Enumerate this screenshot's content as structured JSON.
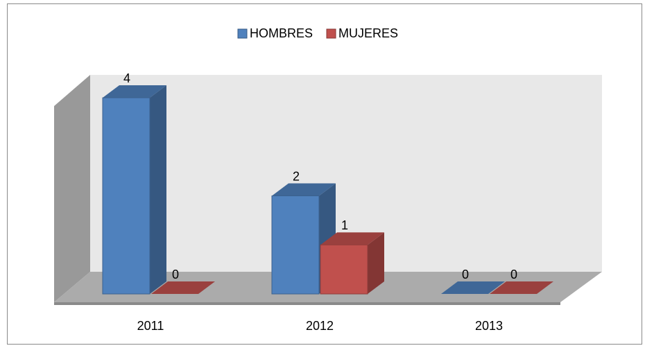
{
  "chart_data": {
    "type": "bar3d",
    "categories": [
      "2011",
      "2012",
      "2013"
    ],
    "series": [
      {
        "name": "HOMBRES",
        "color": "#4f81bd",
        "values": [
          4,
          2,
          0
        ]
      },
      {
        "name": "MUJERES",
        "color": "#c0504d",
        "values": [
          0,
          1,
          0
        ]
      }
    ],
    "legend": "top"
  }
}
